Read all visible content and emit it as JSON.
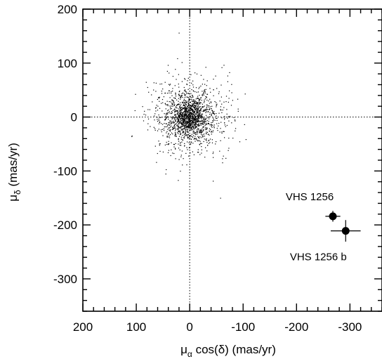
{
  "chart_data": {
    "type": "scatter",
    "title": "",
    "xlabel": {
      "main": "μ",
      "sub": "α",
      "rest": " cos(δ) (mas/yr)"
    },
    "ylabel": {
      "main": "μ",
      "sub": "δ",
      "rest": " (mas/yr)"
    },
    "xlim": [
      200,
      -360
    ],
    "ylim": [
      -360,
      200
    ],
    "x_reversed": true,
    "grid": false,
    "zero_lines": true,
    "x_ticks": [
      200,
      100,
      0,
      -100,
      -200,
      -300
    ],
    "x_tick_labels": [
      "200",
      "100",
      "0",
      "-100",
      "-200",
      "-300"
    ],
    "y_ticks": [
      200,
      100,
      0,
      -100,
      -200,
      -300
    ],
    "y_tick_labels": [
      "200",
      "100",
      "0",
      "-100",
      "-200",
      "-300"
    ],
    "background_field": {
      "description_type": "dense point cloud",
      "center": [
        0,
        0
      ],
      "spread": 30,
      "count": 1800
    },
    "labeled_points": [
      {
        "label": "VHS 1256",
        "x": -268,
        "y": -184,
        "xerr": 14,
        "yerr": 10
      },
      {
        "label": "VHS 1256 b",
        "x": -292,
        "y": -211,
        "xerr": 28,
        "yerr": 20
      }
    ]
  }
}
